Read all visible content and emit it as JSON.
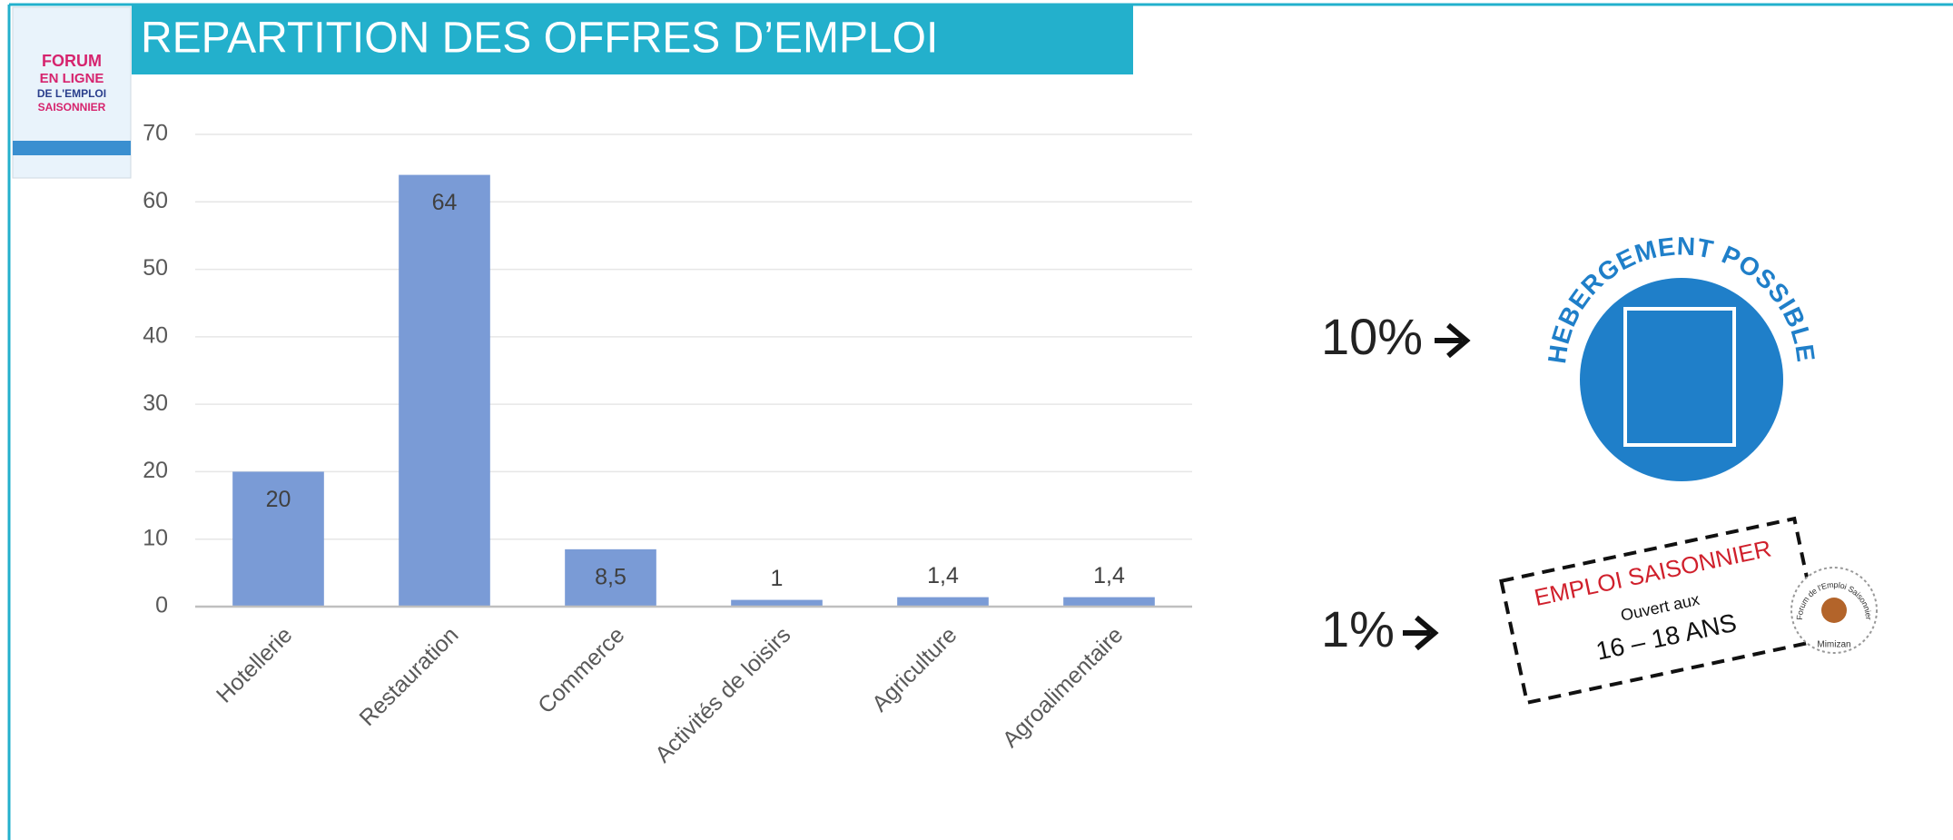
{
  "title": "REPARTITION DES OFFRES D’EMPLOI",
  "logo": {
    "lines": [
      "FORUM",
      "EN LIGNE",
      "DE L'EMPLOI",
      "SAISONNIER"
    ]
  },
  "chart_data": {
    "type": "bar",
    "categories": [
      "Hotellerie",
      "Restauration",
      "Commerce",
      "Activités de loisirs",
      "Agriculture",
      "Agroalimentaire"
    ],
    "values": [
      20,
      64,
      8.5,
      1,
      1.4,
      1.4
    ],
    "value_labels": [
      "20",
      "64",
      "8,5",
      "1",
      "1,4",
      "1,4"
    ],
    "color": "#7a9bd6",
    "ylim": [
      0,
      70
    ],
    "yticks": [
      0,
      10,
      20,
      30,
      40,
      50,
      60,
      70
    ],
    "grid": true
  },
  "callouts": [
    {
      "percent": "10%",
      "badge": "HEBERGEMENT POSSIBLE"
    },
    {
      "percent": "1%",
      "stamp": [
        "EMPLOI SAISONNIER",
        "Ouvert aux",
        "16 – 18 ANS"
      ],
      "seal": [
        "Forum de l'Emploi Saisonnier",
        "Mimizan"
      ]
    }
  ]
}
